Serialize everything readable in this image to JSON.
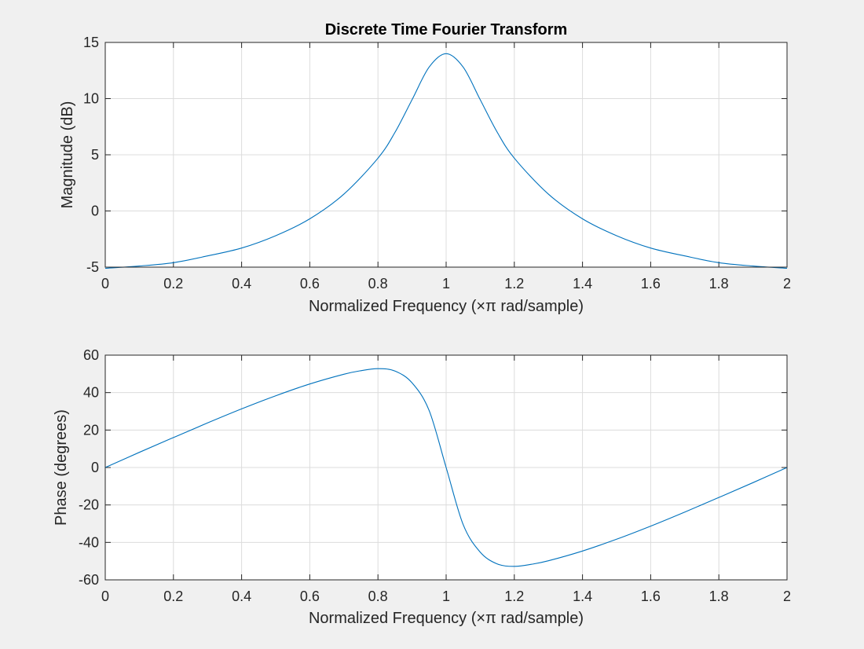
{
  "chart_data": [
    {
      "type": "line",
      "title": "Discrete Time Fourier Transform",
      "xlabel": "Normalized Frequency  (×π rad/sample)",
      "ylabel": "Magnitude (dB)",
      "xlim": [
        0,
        2
      ],
      "ylim": [
        -5,
        15
      ],
      "xticks": [
        "0",
        "0.2",
        "0.4",
        "0.6",
        "0.8",
        "1",
        "1.2",
        "1.4",
        "1.6",
        "1.8",
        "2"
      ],
      "yticks": [
        "-5",
        "0",
        "5",
        "10",
        "15"
      ],
      "grid": true,
      "series": [
        {
          "color": "#0072bd",
          "x": [
            0,
            0.1,
            0.2,
            0.3,
            0.4,
            0.5,
            0.6,
            0.7,
            0.8,
            0.85,
            0.9,
            0.95,
            1.0,
            1.05,
            1.1,
            1.15,
            1.2,
            1.3,
            1.4,
            1.5,
            1.6,
            1.7,
            1.8,
            1.9,
            2.0
          ],
          "y": [
            -5.1,
            -4.9,
            -4.6,
            -4.0,
            -3.3,
            -2.2,
            -0.7,
            1.5,
            4.7,
            7.0,
            9.9,
            12.8,
            14.0,
            12.8,
            9.9,
            7.0,
            4.7,
            1.5,
            -0.7,
            -2.2,
            -3.3,
            -4.0,
            -4.6,
            -4.9,
            -5.1
          ]
        }
      ]
    },
    {
      "type": "line",
      "xlabel": "Normalized Frequency  (×π rad/sample)",
      "ylabel": "Phase (degrees)",
      "xlim": [
        0,
        2
      ],
      "ylim": [
        -60,
        60
      ],
      "xticks": [
        "0",
        "0.2",
        "0.4",
        "0.6",
        "0.8",
        "1",
        "1.2",
        "1.4",
        "1.6",
        "1.8",
        "2"
      ],
      "yticks": [
        "-60",
        "-40",
        "-20",
        "0",
        "20",
        "40",
        "60"
      ],
      "grid": true,
      "series": [
        {
          "color": "#0072bd",
          "x": [
            0,
            0.1,
            0.2,
            0.3,
            0.4,
            0.5,
            0.6,
            0.7,
            0.75,
            0.8,
            0.85,
            0.9,
            0.95,
            1.0,
            1.05,
            1.1,
            1.15,
            1.2,
            1.25,
            1.3,
            1.4,
            1.5,
            1.6,
            1.7,
            1.8,
            1.9,
            2.0
          ],
          "y": [
            0,
            8.1,
            16.0,
            23.8,
            31.3,
            38.3,
            44.6,
            49.8,
            51.7,
            52.8,
            51.5,
            45.2,
            30.5,
            0,
            -30.5,
            -45.2,
            -51.5,
            -52.8,
            -51.7,
            -49.8,
            -44.6,
            -38.3,
            -31.3,
            -23.8,
            -16.0,
            -8.1,
            0
          ]
        }
      ]
    }
  ]
}
